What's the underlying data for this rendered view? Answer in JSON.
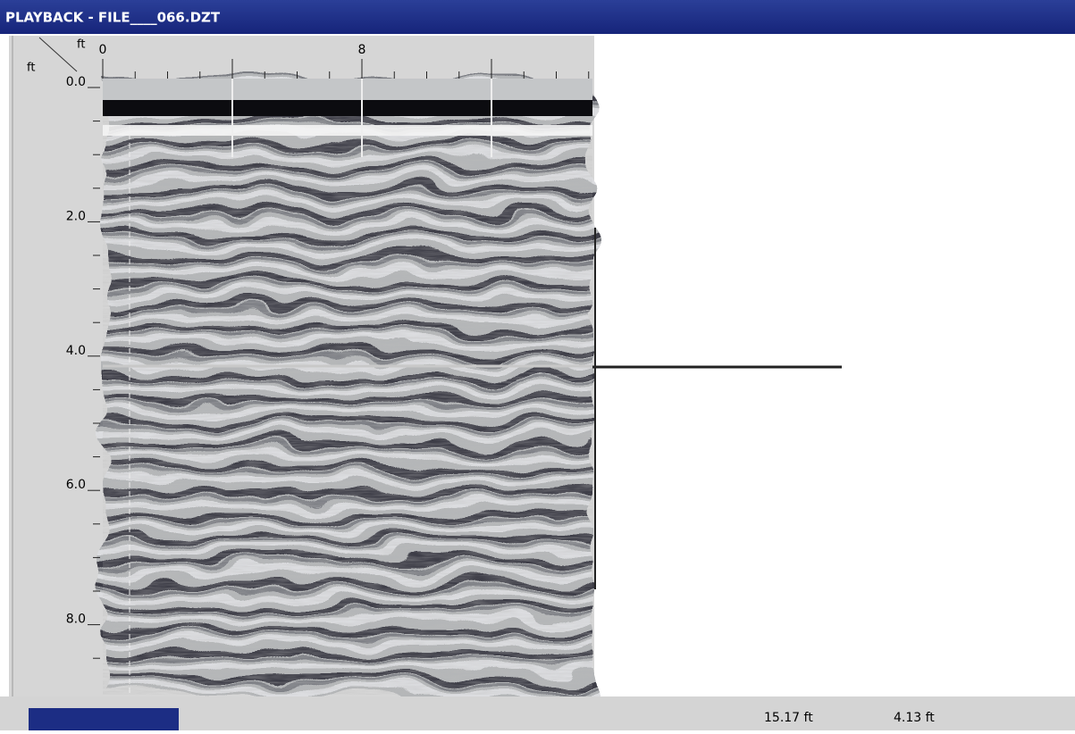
{
  "window": {
    "title": "PLAYBACK - FILE____066.DZT"
  },
  "axes": {
    "corner_x_unit": "ft",
    "corner_y_unit": "ft",
    "x_tick_labels": [
      "0",
      "8"
    ],
    "y_tick_labels": [
      "0.0",
      "2.0",
      "4.0",
      "6.0",
      "8.0"
    ]
  },
  "status_bar": {
    "distance": "15.17 ft",
    "depth": "4.13 ft"
  }
}
